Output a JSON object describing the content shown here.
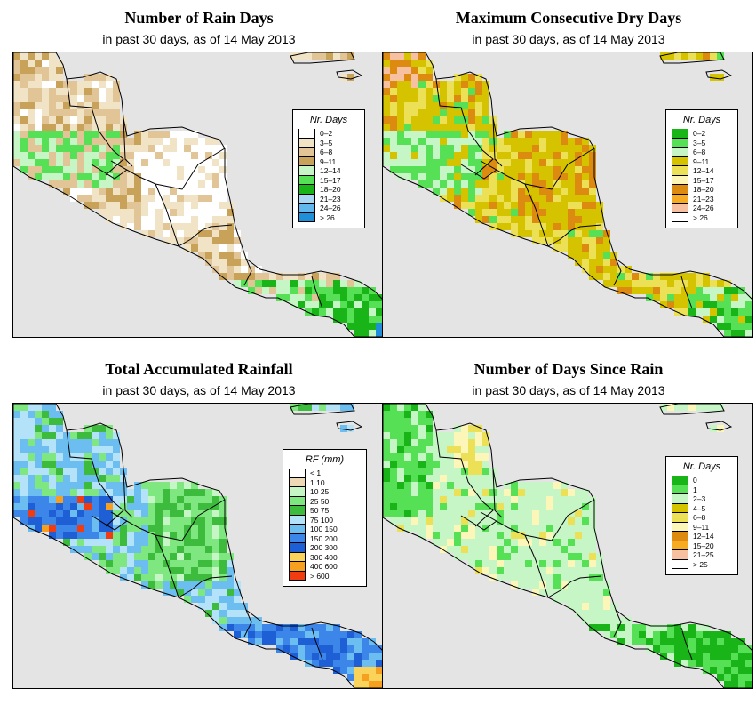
{
  "panels": [
    {
      "id": "rain-days",
      "title": "Number of Rain Days",
      "subtitle": "in past 30 days, as of  14 May 2013",
      "legend_title": "Nr. Days",
      "legend": [
        {
          "label": "0–2",
          "color": "#ffffff"
        },
        {
          "label": "3–5",
          "color": "#f1e4c6"
        },
        {
          "label": "6–8",
          "color": "#e2c596"
        },
        {
          "label": "9–11",
          "color": "#c9a25a"
        },
        {
          "label": "12–14",
          "color": "#c6f5c6"
        },
        {
          "label": "15–17",
          "color": "#55e055"
        },
        {
          "label": "18–20",
          "color": "#18b418"
        },
        {
          "label": "21–23",
          "color": "#a9d8f5"
        },
        {
          "label": "24–26",
          "color": "#62b8ec"
        },
        {
          "label": "> 26",
          "color": "#1e8fd8"
        }
      ]
    },
    {
      "id": "max-dry-days",
      "title": "Maximum Consecutive Dry Days",
      "subtitle": "in past 30 days, as of  14 May 2013",
      "legend_title": "Nr. Days",
      "legend": [
        {
          "label": "0–2",
          "color": "#18b418"
        },
        {
          "label": "3–5",
          "color": "#55e055"
        },
        {
          "label": "6–8",
          "color": "#c6f5c6"
        },
        {
          "label": "9–11",
          "color": "#d6c300"
        },
        {
          "label": "12–14",
          "color": "#ece156"
        },
        {
          "label": "15–17",
          "color": "#fcf6b8"
        },
        {
          "label": "18–20",
          "color": "#dc8a10"
        },
        {
          "label": "21–23",
          "color": "#f7ab22"
        },
        {
          "label": "24–26",
          "color": "#f7c0a0"
        },
        {
          "label": "> 26",
          "color": "#ffffff"
        }
      ]
    },
    {
      "id": "accum-rainfall",
      "title": "Total Accumulated Rainfall",
      "subtitle": "in past 30 days, as of  14 May 2013",
      "legend_title": "RF (mm)",
      "legend": [
        {
          "label": "< 1",
          "color": "#ffffff"
        },
        {
          "label": "1  10",
          "color": "#eed9b6"
        },
        {
          "label": "10  25",
          "color": "#c6f5c6"
        },
        {
          "label": "25  50",
          "color": "#7fe77f"
        },
        {
          "label": "50  75",
          "color": "#3dbb3d"
        },
        {
          "label": "75  100",
          "color": "#b4e2f8"
        },
        {
          "label": "100  150",
          "color": "#6cbdf0"
        },
        {
          "label": "150  200",
          "color": "#3b86e8"
        },
        {
          "label": "200  300",
          "color": "#1f5fd6"
        },
        {
          "label": "300  400",
          "color": "#fad35a"
        },
        {
          "label": "400  600",
          "color": "#f7a020"
        },
        {
          "label": "> 600",
          "color": "#f03c10"
        }
      ]
    },
    {
      "id": "days-since-rain",
      "title": "Number of Days Since Rain",
      "subtitle": "in past 30 days, as of  14 May 2013",
      "legend_title": "Nr. Days",
      "legend": [
        {
          "label": "0",
          "color": "#18b418"
        },
        {
          "label": "1",
          "color": "#55e055"
        },
        {
          "label": "2–3",
          "color": "#c6f5c6"
        },
        {
          "label": "4–5",
          "color": "#d6c300"
        },
        {
          "label": "6–8",
          "color": "#ece156"
        },
        {
          "label": "9–11",
          "color": "#fcf6b8"
        },
        {
          "label": "12–14",
          "color": "#dc8a10"
        },
        {
          "label": "15–20",
          "color": "#f7ab22"
        },
        {
          "label": "21–25",
          "color": "#f7c0a0"
        },
        {
          "label": "> 25",
          "color": "#ffffff"
        }
      ]
    }
  ],
  "map_colors": {
    "ocean": "#e4e4e4",
    "border": "#000000"
  }
}
